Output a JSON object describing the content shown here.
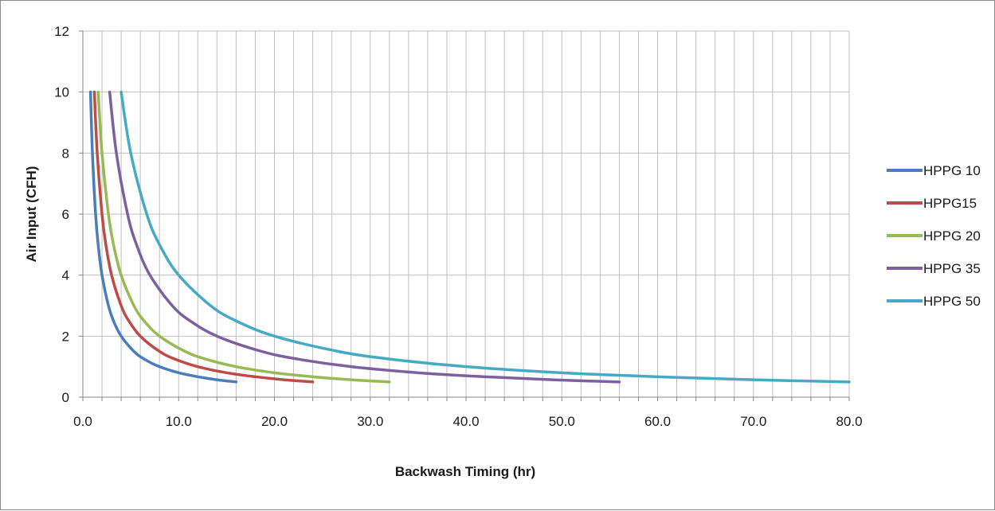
{
  "chart_data": {
    "type": "line",
    "title": "",
    "xlabel": "Backwash Timing (hr)",
    "ylabel": "Air Input (CFH)",
    "xlim": [
      0,
      80
    ],
    "ylim": [
      0,
      12
    ],
    "x_ticks": [
      0,
      10,
      20,
      30,
      40,
      50,
      60,
      70,
      80
    ],
    "x_tick_labels": [
      "0.0",
      "10.0",
      "20.0",
      "30.0",
      "40.0",
      "50.0",
      "60.0",
      "70.0",
      "80.0"
    ],
    "x_minor_gridline_step": 2,
    "y_ticks": [
      0,
      2,
      4,
      6,
      8,
      10,
      12
    ],
    "y_tick_labels": [
      "0",
      "2",
      "4",
      "6",
      "8",
      "10",
      "12"
    ],
    "grid": true,
    "legend_position": "right",
    "series": [
      {
        "name": "HPPG 10",
        "color": "#4a7ebb",
        "x": [
          0.8,
          1.0,
          1.33,
          1.6,
          2.0,
          2.67,
          3.2,
          4.0,
          5.33,
          6.4,
          8.0,
          10.0,
          12.0,
          14.0,
          16.0
        ],
        "y": [
          10,
          8,
          6,
          5,
          4,
          3,
          2.5,
          2,
          1.5,
          1.25,
          1.0,
          0.8,
          0.67,
          0.57,
          0.5
        ]
      },
      {
        "name": "HPPG15",
        "color": "#be4b48",
        "x": [
          1.2,
          1.5,
          2.0,
          2.4,
          3.0,
          4.0,
          4.8,
          6.0,
          8.0,
          9.6,
          12.0,
          15.0,
          18.0,
          21.0,
          24.0
        ],
        "y": [
          10,
          8,
          6,
          5,
          4,
          3,
          2.5,
          2,
          1.5,
          1.25,
          1.0,
          0.8,
          0.67,
          0.57,
          0.5
        ]
      },
      {
        "name": "HPPG 20",
        "color": "#98b954",
        "x": [
          1.6,
          2.0,
          2.67,
          3.2,
          4.0,
          5.33,
          6.4,
          8.0,
          10.67,
          12.8,
          16.0,
          20.0,
          24.0,
          28.0,
          32.0
        ],
        "y": [
          10,
          8,
          6,
          5,
          4,
          3,
          2.5,
          2,
          1.5,
          1.25,
          1.0,
          0.8,
          0.67,
          0.57,
          0.5
        ]
      },
      {
        "name": "HPPG 35",
        "color": "#7d60a0",
        "x": [
          2.8,
          3.5,
          4.67,
          5.6,
          7.0,
          9.33,
          11.2,
          14.0,
          18.67,
          22.4,
          28.0,
          35.0,
          42.0,
          49.0,
          56.0
        ],
        "y": [
          10,
          8,
          6,
          5,
          4,
          3,
          2.5,
          2,
          1.5,
          1.25,
          1.0,
          0.8,
          0.67,
          0.57,
          0.5
        ]
      },
      {
        "name": "HPPG 50",
        "color": "#46aac5",
        "x": [
          4.0,
          5.0,
          6.67,
          8.0,
          10.0,
          13.33,
          16.0,
          20.0,
          26.67,
          32.0,
          40.0,
          50.0,
          60.0,
          70.0,
          80.0
        ],
        "y": [
          10,
          8,
          6,
          5,
          4,
          3,
          2.5,
          2,
          1.5,
          1.25,
          1.0,
          0.8,
          0.67,
          0.57,
          0.5
        ]
      }
    ]
  }
}
